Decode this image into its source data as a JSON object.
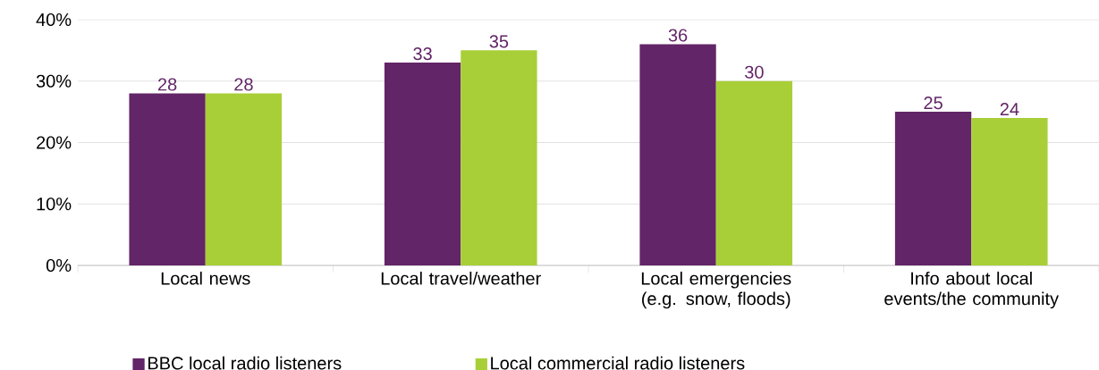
{
  "chart_data": {
    "type": "bar",
    "categories": [
      "Local news",
      "Local travel/weather",
      "Local emergencies (e.g. snow, floods)",
      "Info about local events/the community"
    ],
    "series": [
      {
        "name": "BBC local radio listeners",
        "color": "#622567",
        "values": [
          28,
          33,
          36,
          25
        ]
      },
      {
        "name": "Local commercial radio listeners",
        "color": "#a8cf38",
        "values": [
          28,
          35,
          30,
          24
        ]
      }
    ],
    "ylim": [
      0,
      40
    ],
    "yticks": [
      {
        "value": 0,
        "label": "0%"
      },
      {
        "value": 10,
        "label": "10%"
      },
      {
        "value": 20,
        "label": "20%"
      },
      {
        "value": 30,
        "label": "30%"
      },
      {
        "value": 40,
        "label": "40%"
      }
    ],
    "grid": "y",
    "legend": "bottom",
    "data_labels": true
  }
}
